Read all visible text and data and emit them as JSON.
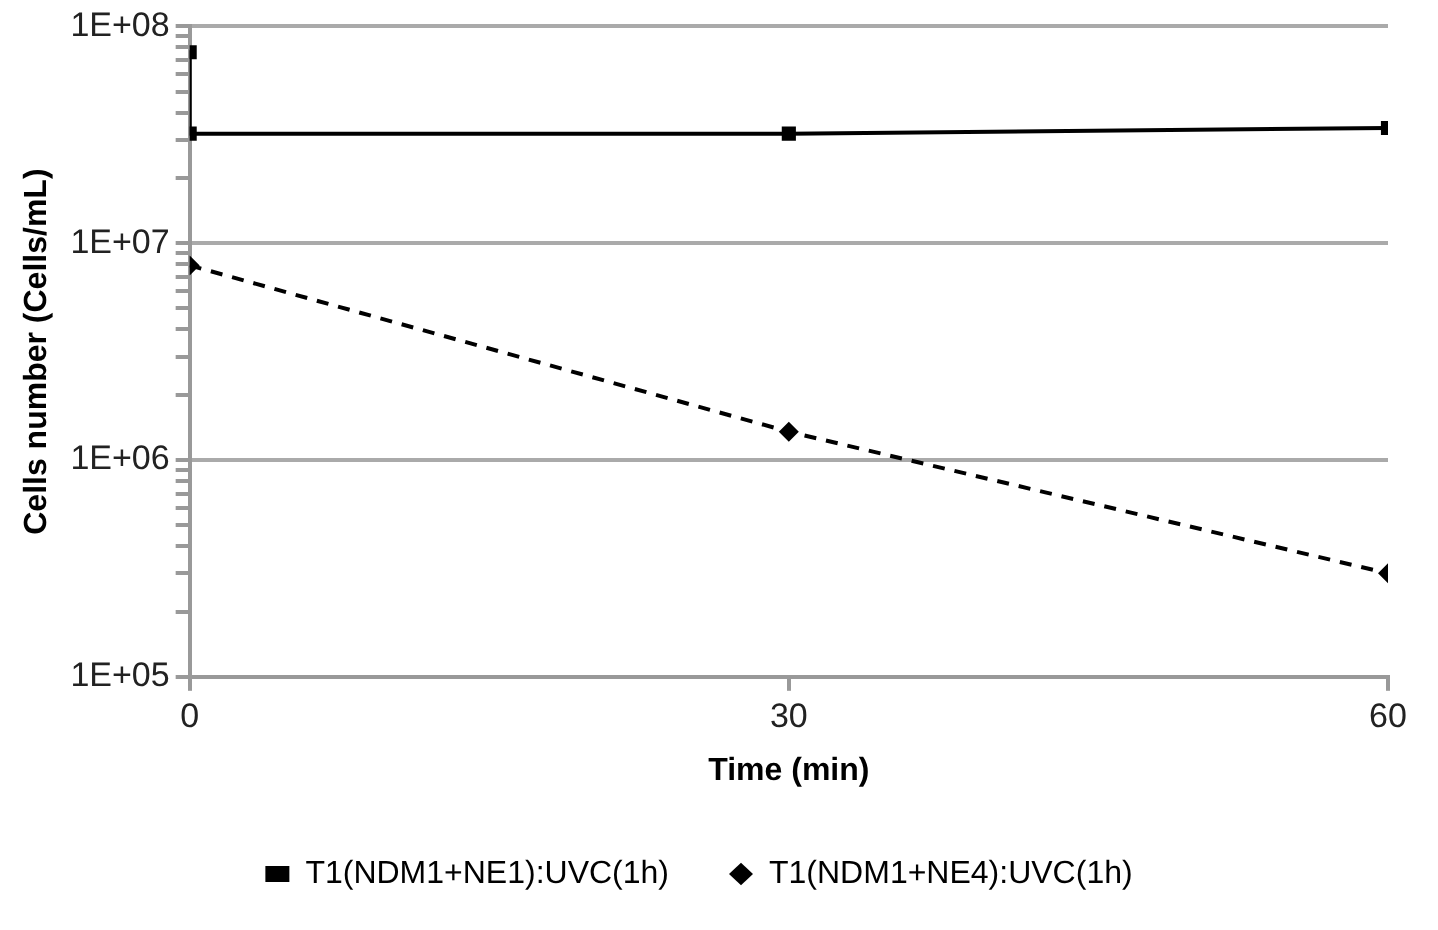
{
  "chart_data": {
    "type": "line",
    "xlabel": "Time (min)",
    "ylabel": "Cells number (Cells/mL)",
    "xlim": [
      0,
      60
    ],
    "xticks": [
      0,
      30,
      60
    ],
    "ylim": [
      100000,
      100000000
    ],
    "yticks": [
      {
        "value": 100000,
        "label": "1E+05"
      },
      {
        "value": 200000,
        "label": null
      },
      {
        "value": 300000,
        "label": null
      },
      {
        "value": 400000,
        "label": null
      },
      {
        "value": 500000,
        "label": null
      },
      {
        "value": 600000,
        "label": null
      },
      {
        "value": 700000,
        "label": null
      },
      {
        "value": 800000,
        "label": null
      },
      {
        "value": 900000,
        "label": null
      },
      {
        "value": 1000000,
        "label": "1E+06"
      },
      {
        "value": 2000000,
        "label": null
      },
      {
        "value": 3000000,
        "label": null
      },
      {
        "value": 4000000,
        "label": null
      },
      {
        "value": 5000000,
        "label": null
      },
      {
        "value": 6000000,
        "label": null
      },
      {
        "value": 7000000,
        "label": null
      },
      {
        "value": 8000000,
        "label": null
      },
      {
        "value": 9000000,
        "label": null
      },
      {
        "value": 10000000,
        "label": "1E+07"
      },
      {
        "value": 20000000,
        "label": null
      },
      {
        "value": 30000000,
        "label": null
      },
      {
        "value": 40000000,
        "label": null
      },
      {
        "value": 50000000,
        "label": null
      },
      {
        "value": 60000000,
        "label": null
      },
      {
        "value": 70000000,
        "label": null
      },
      {
        "value": 80000000,
        "label": null
      },
      {
        "value": 90000000,
        "label": null
      },
      {
        "value": 100000000,
        "label": "1E+08"
      }
    ],
    "log": "y",
    "grid": "y",
    "legend": "bottom",
    "series": [
      {
        "name": "T1(NDM1+NE1):UVC(1h)",
        "color": "#000000",
        "x": [
          0,
          0,
          30,
          60
        ],
        "values": [
          76000000,
          32000000,
          32000000,
          34000000
        ],
        "marker": "square",
        "line_style": "solid"
      },
      {
        "name": "T1(NDM1+NE4):UVC(1h)",
        "color": "#000000",
        "x": [
          0,
          30,
          60
        ],
        "values": [
          7900000,
          1350000,
          300000
        ],
        "marker": "diamond",
        "line_style": "dashed"
      }
    ]
  }
}
